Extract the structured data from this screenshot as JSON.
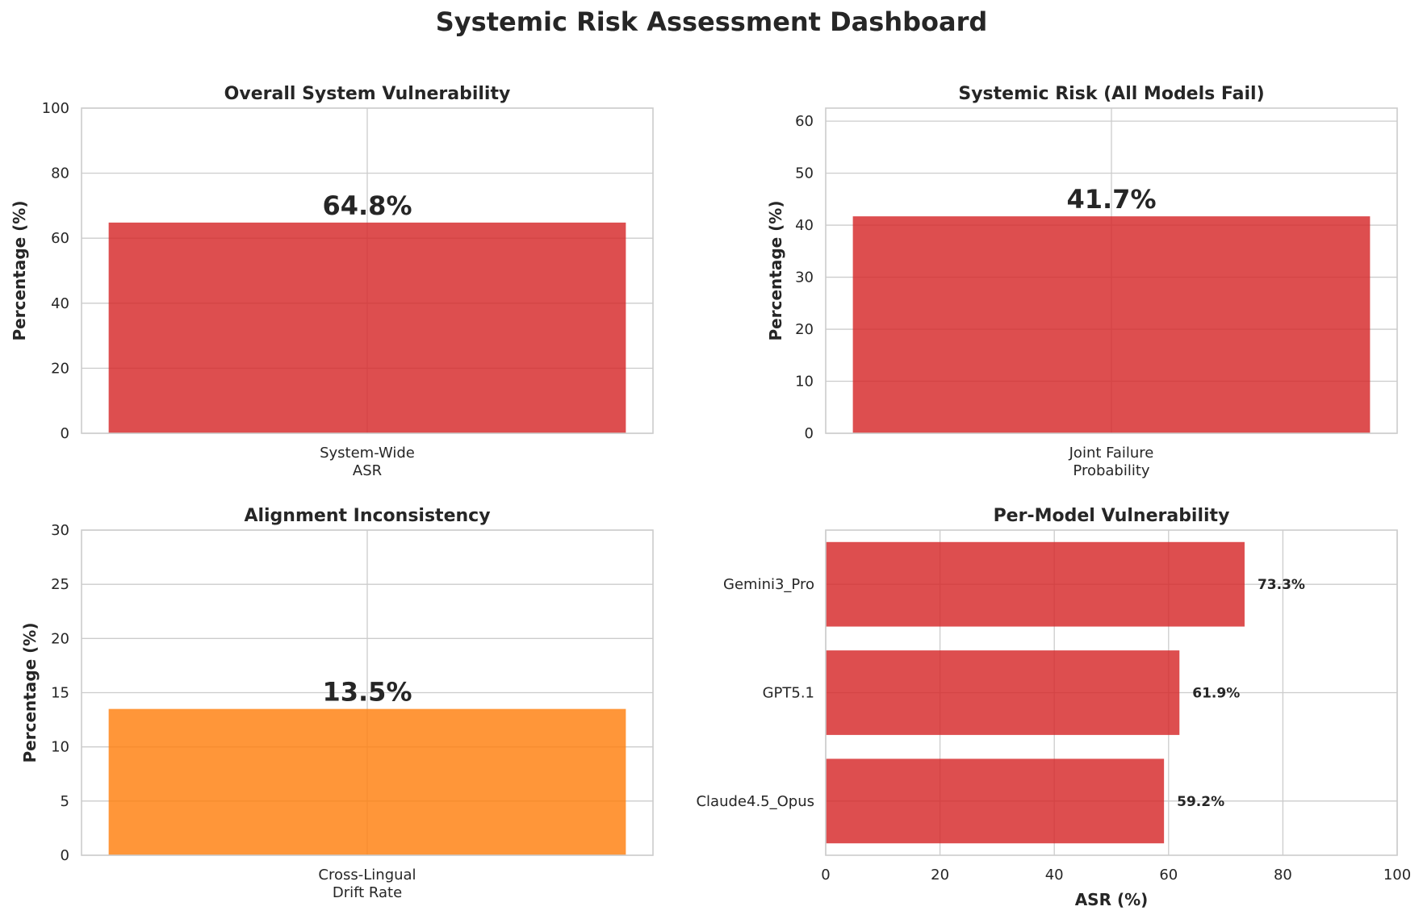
{
  "dashboard": {
    "title": "Systemic Risk Assessment Dashboard"
  },
  "colors": {
    "red": "#d62728",
    "orange": "#ff7f0e",
    "grid": "#cccccc",
    "text": "#262626"
  },
  "chart_data": [
    {
      "type": "bar",
      "title": "Overall System Vulnerability",
      "categories": [
        "System-Wide\nASR"
      ],
      "values": [
        64.8
      ],
      "value_labels": [
        "64.8%"
      ],
      "xlabel": "",
      "ylabel": "Percentage (%)",
      "ylim": [
        0,
        100
      ],
      "yticks": [
        0,
        20,
        40,
        60,
        80,
        100
      ],
      "color": "#d62728",
      "grid": true
    },
    {
      "type": "bar",
      "title": "Systemic Risk (All Models Fail)",
      "categories": [
        "Joint Failure\nProbability"
      ],
      "values": [
        41.7
      ],
      "value_labels": [
        "41.7%"
      ],
      "xlabel": "",
      "ylabel": "Percentage (%)",
      "ylim": [
        0,
        62.5
      ],
      "yticks": [
        0,
        10,
        20,
        30,
        40,
        50,
        60
      ],
      "color": "#d62728",
      "grid": true
    },
    {
      "type": "bar",
      "title": "Alignment Inconsistency",
      "categories": [
        "Cross-Lingual\nDrift Rate"
      ],
      "values": [
        13.5
      ],
      "value_labels": [
        "13.5%"
      ],
      "xlabel": "",
      "ylabel": "Percentage (%)",
      "ylim": [
        0,
        30
      ],
      "yticks": [
        0,
        5,
        10,
        15,
        20,
        25,
        30
      ],
      "color": "#ff7f0e",
      "grid": true
    },
    {
      "type": "barh",
      "title": "Per-Model Vulnerability",
      "categories": [
        "Gemini3_Pro",
        "GPT5.1",
        "Claude4.5_Opus"
      ],
      "values": [
        73.3,
        61.9,
        59.2
      ],
      "value_labels": [
        "73.3%",
        "61.9%",
        "59.2%"
      ],
      "xlabel": "ASR (%)",
      "ylabel": "",
      "xlim": [
        0,
        100
      ],
      "xticks": [
        0,
        20,
        40,
        60,
        80,
        100
      ],
      "color": "#d62728",
      "grid": true
    }
  ]
}
